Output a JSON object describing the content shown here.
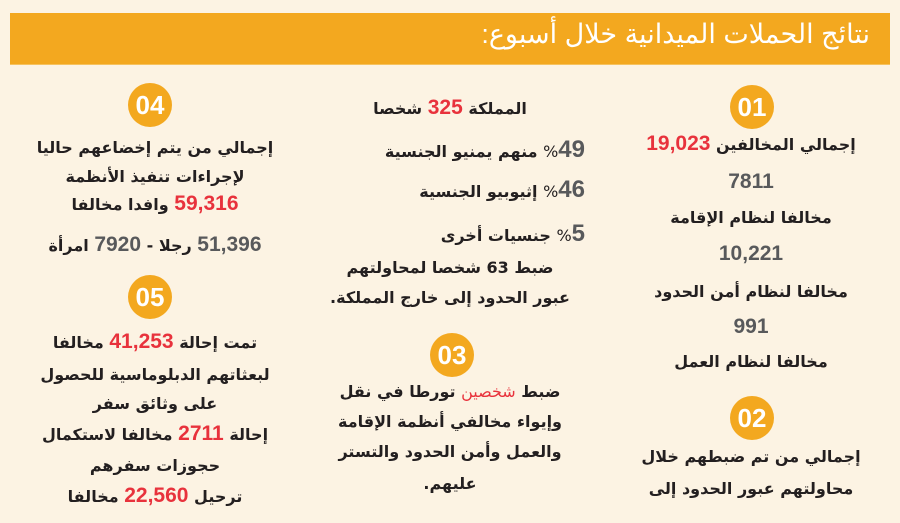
{
  "banner": {
    "title": "نتائج الحملات الميدانية خلال أسبوع:"
  },
  "colors": {
    "accent": "#f3a81f",
    "highlight": "#e8323c",
    "number_gray": "#58595b",
    "background": "#fcf3e3"
  },
  "s01": {
    "badge": "01",
    "l1a": "إجمالي المخالفين",
    "l1b": "19,023",
    "n1": "7811",
    "t1": "مخالفا لنظام الإقامة",
    "n2": "10,221",
    "t2": "مخالفا لنظام أمن الحدود",
    "n3": "991",
    "t3": "مخالفا لنظام العمل"
  },
  "s02": {
    "badge": "02",
    "l1": "إجمالي من تم ضبطهم خلال",
    "l2": "محاولتهم عبور الحدود إلى"
  },
  "smid": {
    "l1a": "المملكة",
    "l1b": "325",
    "l1c": "شخصا",
    "p1": "49",
    "p1s": "%",
    "p1t": "منهم يمنيو الجنسية",
    "p2": "46",
    "p2s": "%",
    "p2t": "إثيوبيو الجنسية",
    "p3": "5",
    "p3s": "%",
    "p3t": "جنسيات أخرى",
    "l5": "ضبط 63 شخصا لمحاولتهم",
    "l6": "عبور الحدود إلى خارج المملكة."
  },
  "s03": {
    "badge": "03",
    "l1a": "ضبط",
    "l1b": "شخصين",
    "l1c": "تورطا في نقل",
    "l2": "وإيواء مخالفي أنظمة الإقامة",
    "l3": "والعمل وأمن الحدود والتستر",
    "l4": "عليهم."
  },
  "s04": {
    "badge": "04",
    "l1": "إجمالي من يتم إخضاعهم حاليا",
    "l2": "لإجراءات تنفيذ الأنظمة",
    "l3a": "59,316",
    "l3b": "وافدا مخالفا",
    "l4a": "51,396",
    "l4b": "رجلا -",
    "l4c": "7920",
    "l4d": "امرأة"
  },
  "s05": {
    "badge": "05",
    "l1a": "تمت إحالة",
    "l1b": "41,253",
    "l1c": "مخالفا",
    "l2": "لبعثاتهم الدبلوماسية للحصول",
    "l3": "على وثائق سفر",
    "l4a": "إحالة",
    "l4b": "2711",
    "l4c": "مخالفا لاستكمال",
    "l5": "حجوزات سفرهم",
    "l6a": "ترحيل",
    "l6b": "22,560",
    "l6c": "مخالفا"
  }
}
